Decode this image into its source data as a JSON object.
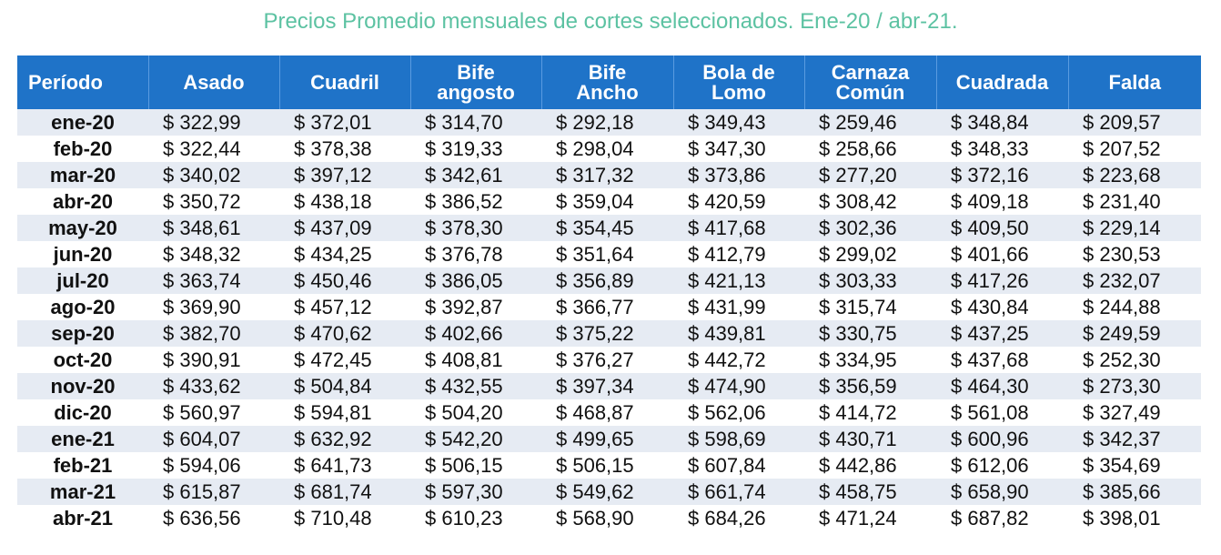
{
  "title": "Precios Promedio mensuales de cortes seleccionados. Ene-20 / abr-21.",
  "headers": [
    [
      "Período"
    ],
    [
      "Asado"
    ],
    [
      "Cuadril"
    ],
    [
      "Bife",
      "angosto"
    ],
    [
      "Bife",
      "Ancho"
    ],
    [
      "Bola de",
      "Lomo"
    ],
    [
      "Carnaza",
      "Común"
    ],
    [
      "Cuadrada"
    ],
    [
      "Falda"
    ]
  ],
  "colors": {
    "header_bg": "#1f73c8",
    "title": "#5cc2a2",
    "row_shade": "#e6ebf3"
  },
  "rows": [
    [
      "ene-20",
      "$ 322,99",
      "$ 372,01",
      "$ 314,70",
      "$ 292,18",
      "$ 349,43",
      "$ 259,46",
      "$ 348,84",
      "$ 209,57"
    ],
    [
      "feb-20",
      "$ 322,44",
      "$ 378,38",
      "$ 319,33",
      "$ 298,04",
      "$ 347,30",
      "$ 258,66",
      "$ 348,33",
      "$ 207,52"
    ],
    [
      "mar-20",
      "$ 340,02",
      "$ 397,12",
      "$ 342,61",
      "$ 317,32",
      "$ 373,86",
      "$ 277,20",
      "$ 372,16",
      "$ 223,68"
    ],
    [
      "abr-20",
      "$ 350,72",
      "$ 438,18",
      "$ 386,52",
      "$ 359,04",
      "$ 420,59",
      "$ 308,42",
      "$ 409,18",
      "$ 231,40"
    ],
    [
      "may-20",
      "$ 348,61",
      "$ 437,09",
      "$ 378,30",
      "$ 354,45",
      "$ 417,68",
      "$ 302,36",
      "$ 409,50",
      "$ 229,14"
    ],
    [
      "jun-20",
      "$ 348,32",
      "$ 434,25",
      "$ 376,78",
      "$ 351,64",
      "$ 412,79",
      "$ 299,02",
      "$ 401,66",
      "$ 230,53"
    ],
    [
      "jul-20",
      "$ 363,74",
      "$ 450,46",
      "$ 386,05",
      "$ 356,89",
      "$ 421,13",
      "$ 303,33",
      "$ 417,26",
      "$ 232,07"
    ],
    [
      "ago-20",
      "$ 369,90",
      "$ 457,12",
      "$ 392,87",
      "$ 366,77",
      "$ 431,99",
      "$ 315,74",
      "$ 430,84",
      "$ 244,88"
    ],
    [
      "sep-20",
      "$ 382,70",
      "$ 470,62",
      "$ 402,66",
      "$ 375,22",
      "$ 439,81",
      "$ 330,75",
      "$ 437,25",
      "$ 249,59"
    ],
    [
      "oct-20",
      "$ 390,91",
      "$ 472,45",
      "$ 408,81",
      "$ 376,27",
      "$ 442,72",
      "$ 334,95",
      "$ 437,68",
      "$ 252,30"
    ],
    [
      "nov-20",
      "$ 433,62",
      "$ 504,84",
      "$ 432,55",
      "$ 397,34",
      "$ 474,90",
      "$ 356,59",
      "$ 464,30",
      "$ 273,30"
    ],
    [
      "dic-20",
      "$ 560,97",
      "$ 594,81",
      "$ 504,20",
      "$ 468,87",
      "$ 562,06",
      "$ 414,72",
      "$ 561,08",
      "$ 327,49"
    ],
    [
      "ene-21",
      "$ 604,07",
      "$ 632,92",
      "$ 542,20",
      "$ 499,65",
      "$ 598,69",
      "$ 430,71",
      "$ 600,96",
      "$ 342,37"
    ],
    [
      "feb-21",
      "$ 594,06",
      "$ 641,73",
      "$ 506,15",
      "$ 506,15",
      "$ 607,84",
      "$ 442,86",
      "$ 612,06",
      "$ 354,69"
    ],
    [
      "mar-21",
      "$ 615,87",
      "$ 681,74",
      "$ 597,30",
      "$ 549,62",
      "$ 661,74",
      "$ 458,75",
      "$ 658,90",
      "$ 385,66"
    ],
    [
      "abr-21",
      "$ 636,56",
      "$ 710,48",
      "$ 610,23",
      "$ 568,90",
      "$ 684,26",
      "$ 471,24",
      "$ 687,82",
      "$ 398,01"
    ]
  ]
}
